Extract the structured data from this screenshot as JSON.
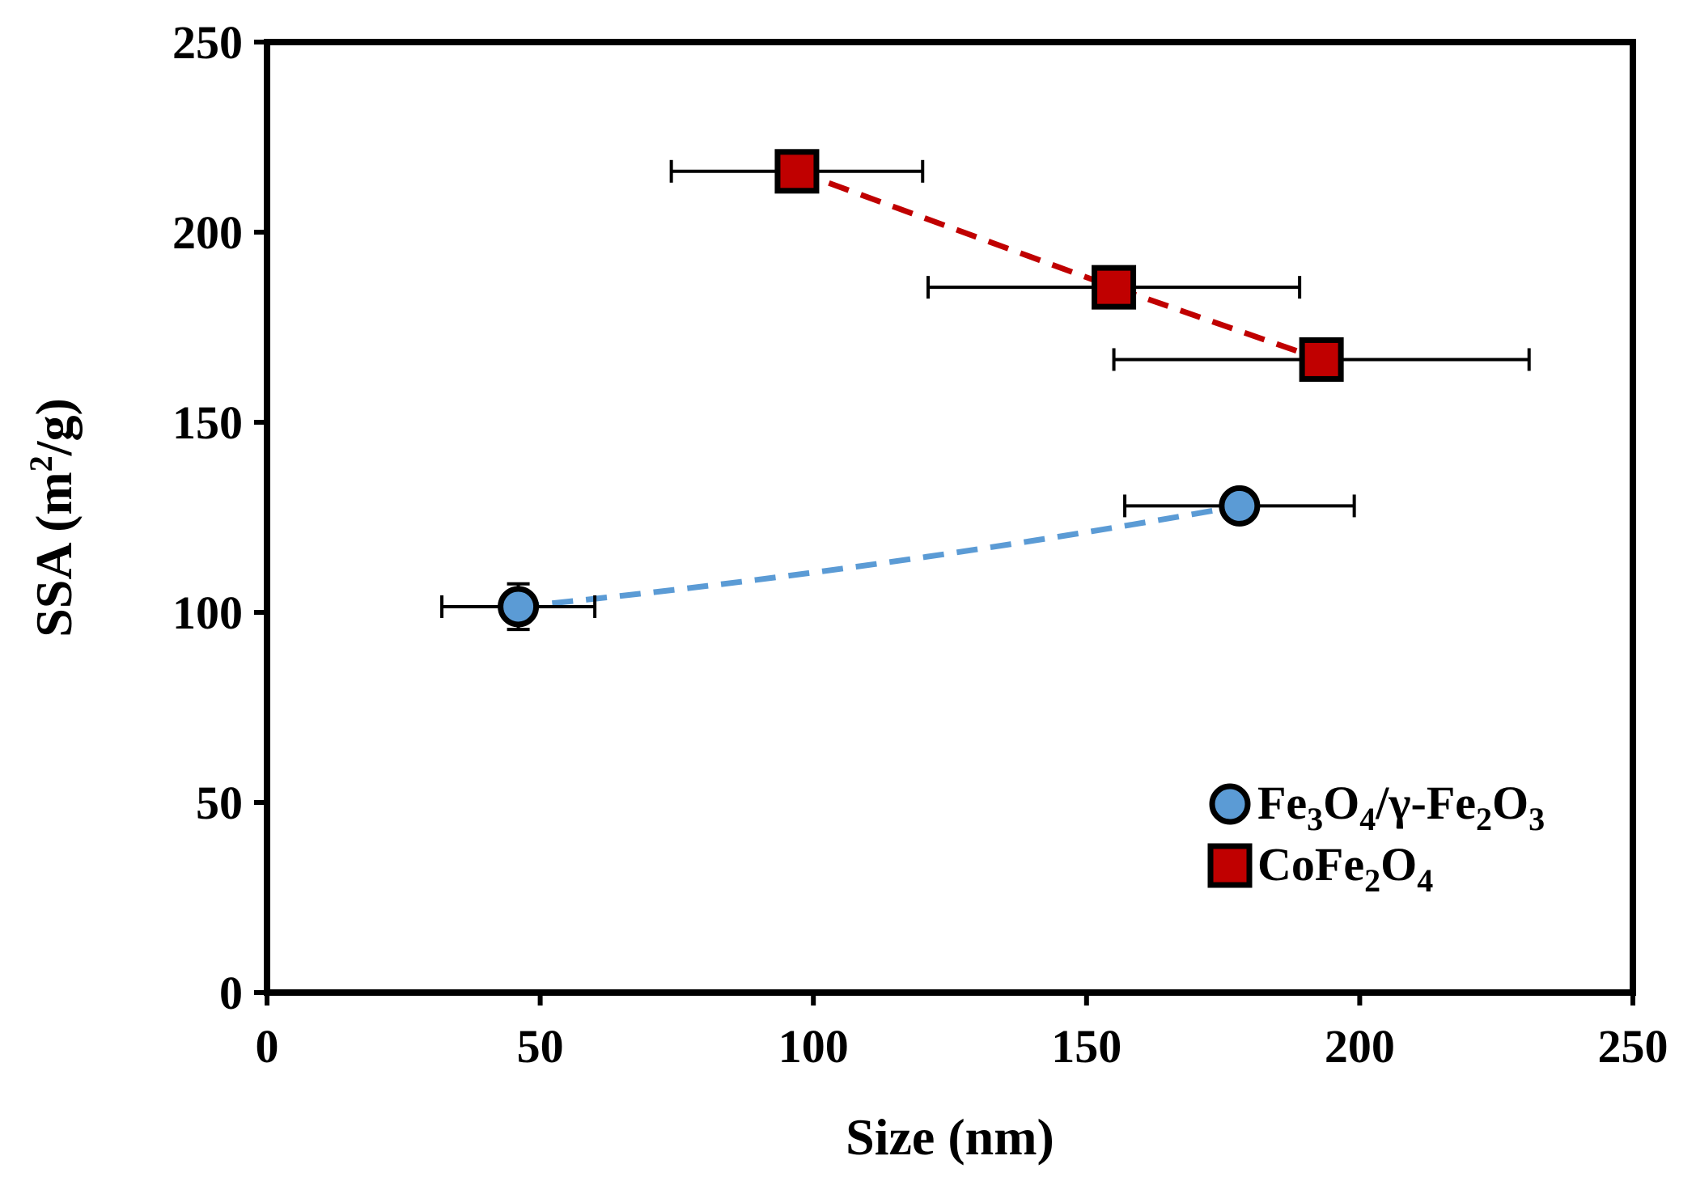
{
  "chart_data": {
    "type": "scatter",
    "xlabel": "Size (nm)",
    "ylabel_main": "SSA (m",
    "ylabel_sup": "2",
    "ylabel_tail": "/g)",
    "xlim": [
      0,
      250
    ],
    "ylim": [
      0,
      250
    ],
    "x_ticks": [
      "0",
      "50",
      "100",
      "150",
      "200",
      "250"
    ],
    "y_ticks": [
      "0",
      "50",
      "100",
      "150",
      "200",
      "250"
    ],
    "x_tick_values": [
      0,
      50,
      100,
      150,
      200,
      250
    ],
    "y_tick_values": [
      0,
      50,
      100,
      150,
      200,
      250
    ],
    "grid": false,
    "legend_position": "bottom-right",
    "series": [
      {
        "name": "Fe3O4/γ-Fe2O3",
        "label_parts": [
          {
            "t": "Fe",
            "sub": false
          },
          {
            "t": "3",
            "sub": true
          },
          {
            "t": "O",
            "sub": false
          },
          {
            "t": "4",
            "sub": true
          },
          {
            "t": "/γ-Fe",
            "sub": false
          },
          {
            "t": "2",
            "sub": true
          },
          {
            "t": "O",
            "sub": false
          },
          {
            "t": "3",
            "sub": true
          }
        ],
        "marker": "circle",
        "color": "#5b9bd5",
        "line_color": "#5b9bd5",
        "points": [
          {
            "x": 46,
            "y": 101.5,
            "xerr": 14,
            "yerr": 6
          },
          {
            "x": 178,
            "y": 128,
            "xerr": 21,
            "yerr": 0
          }
        ]
      },
      {
        "name": "CoFe2O4",
        "label_parts": [
          {
            "t": "CoFe",
            "sub": false
          },
          {
            "t": "2",
            "sub": true
          },
          {
            "t": "O",
            "sub": false
          },
          {
            "t": "4",
            "sub": true
          }
        ],
        "marker": "square",
        "color": "#c00000",
        "line_color": "#c00000",
        "points": [
          {
            "x": 97,
            "y": 216,
            "xerr": 23,
            "yerr": 0
          },
          {
            "x": 155,
            "y": 185.5,
            "xerr": 34,
            "yerr": 0
          },
          {
            "x": 193,
            "y": 166.5,
            "xerr": 38,
            "yerr": 0
          }
        ]
      }
    ]
  }
}
